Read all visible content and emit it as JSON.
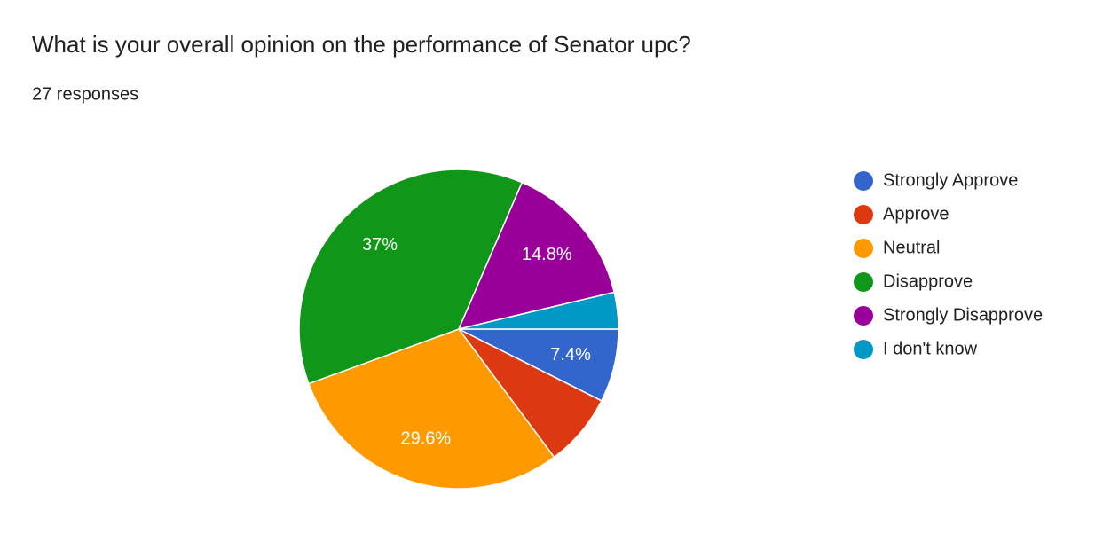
{
  "chart_data": {
    "type": "pie",
    "title": "What is your overall opinion on the performance of Senator upc?",
    "subtitle": "27 responses",
    "categories": [
      "Strongly Approve",
      "Approve",
      "Neutral",
      "Disapprove",
      "Strongly Disapprove",
      "I don't know"
    ],
    "values": [
      7.4,
      7.4,
      29.6,
      37,
      14.8,
      3.7
    ],
    "value_labels": [
      "7.4%",
      null,
      "29.6%",
      "37%",
      "14.8%",
      null
    ],
    "colors": [
      "#3366cc",
      "#dc3912",
      "#ff9900",
      "#109618",
      "#990099",
      "#0099c6"
    ],
    "legend": "right"
  }
}
